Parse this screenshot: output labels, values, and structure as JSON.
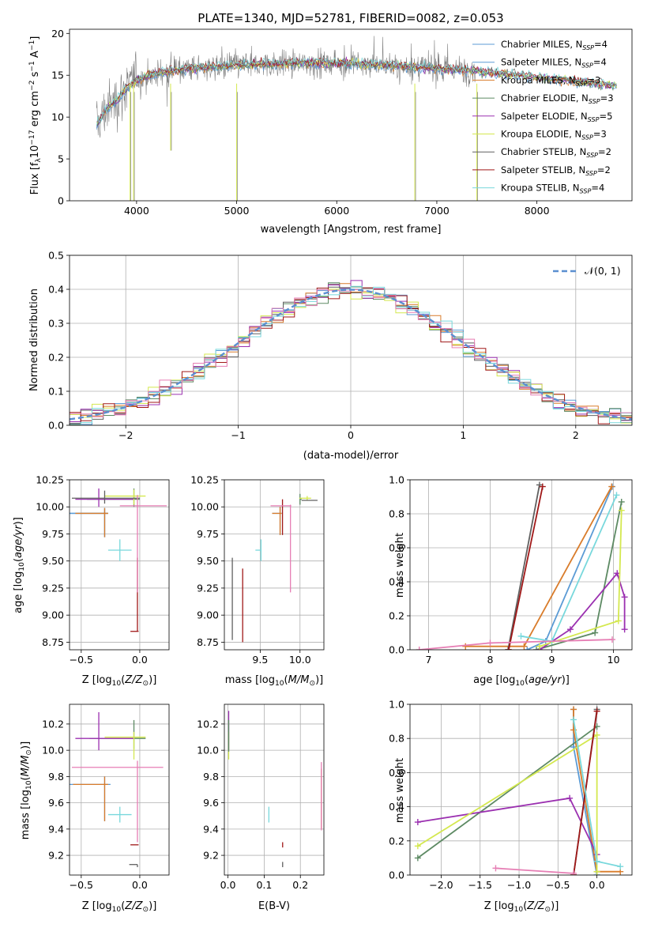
{
  "colors": {
    "Chabrier MILES": "#5b9bd5",
    "Salpeter MILES": "#5b9bd5",
    "Kroupa MILES": "#d97c2b",
    "Chabrier ELODIE": "#5d8a63",
    "Salpeter ELODIE": "#9b30b0",
    "Kroupa ELODIE": "#d4e84f",
    "Chabrier STELIB": "#606060",
    "Salpeter STELIB": "#a01818",
    "Kroupa STELIB": "#78d8dc",
    "normal": "#5b8fd0",
    "pink": "#e67eb4",
    "data_gray": "#808080"
  },
  "chart_data": [
    {
      "id": "spectrum",
      "type": "line",
      "title": "PLATE=1340, MJD=52781, FIBERID=0082, z=0.053",
      "xlabel": "wavelength [Angstrom, rest frame]",
      "ylabel": "Flux [f_λ10^-17 erg cm^-2 s^-1 A^-1]",
      "xlim": [
        3330,
        8950
      ],
      "ylim": [
        0,
        20.5
      ],
      "xticks": [
        4000,
        5000,
        6000,
        7000,
        8000
      ],
      "yticks": [
        0,
        5,
        10,
        15,
        20
      ],
      "grid": false,
      "legend_position": "right",
      "legend": [
        {
          "name": "Chabrier MILES",
          "nssp": "4"
        },
        {
          "name": "Salpeter MILES",
          "nssp": "4"
        },
        {
          "name": "Kroupa MILES",
          "nssp": "3"
        },
        {
          "name": "Chabrier ELODIE",
          "nssp": "3"
        },
        {
          "name": "Salpeter ELODIE",
          "nssp": "5"
        },
        {
          "name": "Kroupa ELODIE",
          "nssp": "3"
        },
        {
          "name": "Chabrier STELIB",
          "nssp": "2"
        },
        {
          "name": "Salpeter STELIB",
          "nssp": "2"
        },
        {
          "name": "Kroupa STELIB",
          "nssp": "4"
        }
      ],
      "continuum_knots": {
        "x": [
          3600,
          3700,
          3800,
          3900,
          4000,
          4200,
          4500,
          5000,
          5500,
          6000,
          6500,
          7000,
          7400
        ],
        "y": [
          9,
          11,
          12,
          13.5,
          14.5,
          15.2,
          15.8,
          16.2,
          16.4,
          16.5,
          16.2,
          15.8,
          15.6
        ]
      },
      "model_knots": {
        "x": [
          7400,
          7800,
          8200,
          8800
        ],
        "y": [
          15.5,
          15.0,
          14.5,
          13.8
        ]
      },
      "spikes": [
        {
          "x": 3935,
          "y": 0
        },
        {
          "x": 3970,
          "y": 0
        },
        {
          "x": 4340,
          "y": 6
        },
        {
          "x": 5000,
          "y": 0
        },
        {
          "x": 6780,
          "y": 0
        },
        {
          "x": 7400,
          "y": 0
        }
      ]
    },
    {
      "id": "residuals",
      "type": "line",
      "xlabel": "(data-model)/error",
      "ylabel": "Normed distribution",
      "xlim": [
        -2.5,
        2.5
      ],
      "ylim": [
        0,
        0.5
      ],
      "xticks": [
        -2,
        -1,
        0,
        1,
        2
      ],
      "yticks": [
        0.0,
        0.1,
        0.2,
        0.3,
        0.4,
        0.5
      ],
      "grid": true,
      "legend_position": "top-right",
      "legend_label": "𝒩(0, 1)",
      "bin_width": 0.1
    },
    {
      "id": "age_vs_Z",
      "type": "scatter",
      "xlabel": "Z [log10(Z/Z⊙)]",
      "ylabel": "age  [log10(age/yr)]",
      "xlim": [
        -0.6,
        0.25
      ],
      "ylim": [
        8.68,
        10.25
      ],
      "xticks": [
        -0.5,
        0.0
      ],
      "yticks": [
        8.75,
        9.0,
        9.25,
        9.5,
        9.75,
        10.0,
        10.25
      ],
      "grid": true,
      "points": [
        {
          "model": "Chabrier MILES",
          "x": -0.3,
          "xerr": [
            0.3,
            0.03
          ],
          "y": 9.94,
          "yerr": [
            0.22,
            0.05
          ]
        },
        {
          "model": "Salpeter MILES",
          "x": -0.3,
          "xerr": [
            0.3,
            0.03
          ],
          "y": 9.94,
          "yerr": [
            0.22,
            0.05
          ]
        },
        {
          "model": "Kroupa MILES",
          "x": -0.3,
          "xerr": [
            0.25,
            0.03
          ],
          "y": 9.94,
          "yerr": [
            0.22,
            0.05
          ]
        },
        {
          "model": "Chabrier ELODIE",
          "x": -0.05,
          "xerr": [
            0.4,
            0.05
          ],
          "y": 10.07,
          "yerr": [
            0.07,
            0.1
          ]
        },
        {
          "model": "Salpeter ELODIE",
          "x": -0.35,
          "xerr": [
            0.2,
            0.3
          ],
          "y": 10.07,
          "yerr": [
            0.07,
            0.1
          ]
        },
        {
          "model": "Kroupa ELODIE",
          "x": -0.05,
          "xerr": [
            0.25,
            0.1
          ],
          "y": 10.1,
          "yerr": [
            0.08,
            0.06
          ]
        },
        {
          "model": "Chabrier STELIB",
          "x": -0.3,
          "xerr": [
            0.28,
            0.3
          ],
          "y": 10.08,
          "yerr": [
            0.05,
            0.07
          ]
        },
        {
          "model": "Salpeter STELIB",
          "x": -0.02,
          "xerr": [
            0.06,
            0.01
          ],
          "y": 8.85,
          "yerr": [
            0.0,
            0.68
          ]
        },
        {
          "model": "Kroupa STELIB",
          "x": -0.17,
          "xerr": [
            0.1,
            0.1
          ],
          "y": 9.6,
          "yerr": [
            0.1,
            0.1
          ]
        },
        {
          "model": "pink",
          "x": -0.02,
          "xerr": [
            0.15,
            0.25
          ],
          "y": 10.01,
          "yerr": [
            0.8,
            0.1
          ]
        }
      ]
    },
    {
      "id": "age_vs_mass",
      "type": "scatter",
      "xlabel": "mass [log10(M/M⊙)]",
      "ylabel": "",
      "xlim": [
        9.05,
        10.3
      ],
      "ylim": [
        8.68,
        10.25
      ],
      "xticks": [
        9.5,
        10.0
      ],
      "yticks": [
        8.75,
        9.0,
        9.25,
        9.5,
        9.75,
        10.0,
        10.25
      ],
      "grid": true,
      "points": [
        {
          "model": "Chabrier MILES",
          "x": 9.75,
          "xerr": [
            0.1,
            0.02
          ],
          "y": 9.94,
          "yerr": [
            0.2,
            0.06
          ]
        },
        {
          "model": "Kroupa MILES",
          "x": 9.75,
          "xerr": [
            0.1,
            0.02
          ],
          "y": 9.94,
          "yerr": [
            0.2,
            0.06
          ]
        },
        {
          "model": "Chabrier ELODIE",
          "x": 10.0,
          "xerr": [
            0.0,
            0.02
          ],
          "y": 10.07,
          "yerr": [
            0.05,
            0.05
          ]
        },
        {
          "model": "Salpeter ELODIE",
          "x": 10.09,
          "xerr": [
            0.0,
            0.0
          ],
          "y": 10.07,
          "yerr": [
            0.0,
            0.0
          ]
        },
        {
          "model": "Kroupa ELODIE",
          "x": 10.09,
          "xerr": [
            0.1,
            0.05
          ],
          "y": 10.08,
          "yerr": [
            0.02,
            0.02
          ]
        },
        {
          "model": "Chabrier STELIB",
          "x": 9.15,
          "xerr": [
            0.0,
            0.0
          ],
          "y": 8.85,
          "yerr": [
            0.08,
            0.68
          ]
        },
        {
          "model": "Chabrier STELIB",
          "x": 10.12,
          "xerr": [
            0.1,
            0.1
          ],
          "y": 10.06,
          "yerr": [
            0.0,
            0.0
          ]
        },
        {
          "model": "Salpeter STELIB",
          "x": 9.28,
          "xerr": [
            0.0,
            0.0
          ],
          "y": 8.8,
          "yerr": [
            0.05,
            0.63
          ]
        },
        {
          "model": "Salpeter STELIB",
          "x": 9.78,
          "xerr": [
            0.0,
            0.0
          ],
          "y": 9.94,
          "yerr": [
            0.2,
            0.13
          ]
        },
        {
          "model": "Kroupa STELIB",
          "x": 9.51,
          "xerr": [
            0.07,
            0.0
          ],
          "y": 9.6,
          "yerr": [
            0.1,
            0.1
          ]
        },
        {
          "model": "pink",
          "x": 9.88,
          "xerr": [
            0.25,
            0.01
          ],
          "y": 10.01,
          "yerr": [
            0.8,
            0.01
          ]
        }
      ]
    },
    {
      "id": "weight_vs_age",
      "type": "line",
      "xlabel": "age  [log10(age/yr)]",
      "ylabel": "mass weight",
      "xlim": [
        6.7,
        10.3
      ],
      "ylim": [
        0,
        1.0
      ],
      "xticks": [
        7,
        8,
        9,
        10
      ],
      "yticks": [
        0.0,
        0.2,
        0.4,
        0.6,
        0.8,
        1.0
      ],
      "grid": true,
      "series": [
        {
          "model": "Chabrier MILES",
          "x": [
            8.6,
            8.9,
            9.98
          ],
          "y": [
            0.0,
            0.05,
            0.96
          ]
        },
        {
          "model": "Kroupa MILES",
          "x": [
            7.6,
            8.55,
            9.97
          ],
          "y": [
            0.02,
            0.02,
            0.96
          ]
        },
        {
          "model": "Chabrier ELODIE",
          "x": [
            8.75,
            9.7,
            10.13
          ],
          "y": [
            0.0,
            0.1,
            0.87
          ]
        },
        {
          "model": "Salpeter ELODIE",
          "x": [
            8.8,
            9.3,
            10.06,
            10.18,
            10.18
          ],
          "y": [
            0.0,
            0.12,
            0.45,
            0.31,
            0.12
          ]
        },
        {
          "model": "Kroupa ELODIE",
          "x": [
            8.8,
            10.08,
            10.13
          ],
          "y": [
            0.02,
            0.17,
            0.82
          ]
        },
        {
          "model": "Chabrier STELIB",
          "x": [
            8.29,
            8.8
          ],
          "y": [
            0.0,
            0.97
          ]
        },
        {
          "model": "Salpeter STELIB",
          "x": [
            8.3,
            8.85
          ],
          "y": [
            0.0,
            0.96
          ]
        },
        {
          "model": "Kroupa STELIB",
          "x": [
            8.5,
            9.0,
            10.05
          ],
          "y": [
            0.08,
            0.05,
            0.91
          ]
        },
        {
          "model": "pink",
          "x": [
            6.85,
            8.0,
            9.98
          ],
          "y": [
            0.0,
            0.04,
            0.06
          ]
        }
      ]
    },
    {
      "id": "mass_vs_Z",
      "type": "scatter",
      "xlabel": "Z [log10(Z/Z⊙)]",
      "ylabel": "mass [log10(M/M⊙)]",
      "xlim": [
        -0.6,
        0.25
      ],
      "ylim": [
        9.05,
        10.35
      ],
      "xticks": [
        -0.5,
        0.0
      ],
      "yticks": [
        9.2,
        9.4,
        9.6,
        9.8,
        10.0,
        10.2
      ],
      "grid": true,
      "points": [
        {
          "model": "Chabrier MILES",
          "x": -0.3,
          "xerr": [
            0.3,
            0.05
          ],
          "y": 9.74,
          "yerr": [
            0.28,
            0.06
          ]
        },
        {
          "model": "Kroupa MILES",
          "x": -0.3,
          "xerr": [
            0.27,
            0.03
          ],
          "y": 9.74,
          "yerr": [
            0.28,
            0.06
          ]
        },
        {
          "model": "Chabrier ELODIE",
          "x": -0.05,
          "xerr": [
            0.38,
            0.1
          ],
          "y": 10.09,
          "yerr": [
            0.08,
            0.14
          ]
        },
        {
          "model": "Salpeter ELODIE",
          "x": -0.35,
          "xerr": [
            0.2,
            0.3
          ],
          "y": 10.09,
          "yerr": [
            0.09,
            0.2
          ]
        },
        {
          "model": "Kroupa ELODIE",
          "x": -0.05,
          "xerr": [
            0.25,
            0.1
          ],
          "y": 10.1,
          "yerr": [
            0.17,
            0.04
          ]
        },
        {
          "model": "Chabrier STELIB",
          "x": -0.02,
          "xerr": [
            0.07,
            0.0
          ],
          "y": 9.13,
          "yerr": [
            0.02,
            0.0
          ]
        },
        {
          "model": "Salpeter STELIB",
          "x": -0.02,
          "xerr": [
            0.06,
            0.01
          ],
          "y": 9.28,
          "yerr": [
            0.0,
            0.0
          ]
        },
        {
          "model": "Kroupa STELIB",
          "x": -0.17,
          "xerr": [
            0.1,
            0.1
          ],
          "y": 9.51,
          "yerr": [
            0.06,
            0.06
          ]
        },
        {
          "model": "pink",
          "x": -0.02,
          "xerr": [
            0.56,
            0.22
          ],
          "y": 9.87,
          "yerr": [
            0.57,
            0.05
          ]
        }
      ]
    },
    {
      "id": "mass_vs_ebv",
      "type": "scatter",
      "xlabel": "E(B-V)",
      "ylabel": "",
      "xlim": [
        -0.01,
        0.265
      ],
      "ylim": [
        9.05,
        10.35
      ],
      "xticks": [
        0.0,
        0.1,
        0.2
      ],
      "yticks": [
        9.2,
        9.4,
        9.6,
        9.8,
        10.0,
        10.2
      ],
      "grid": true,
      "points": [
        {
          "model": "Salpeter ELODIE",
          "x": 0.002,
          "yerr": [
            0.1,
            0.2
          ],
          "y": 10.1
        },
        {
          "model": "Kroupa ELODIE",
          "x": 0.002,
          "yerr": [
            0.17,
            0.04
          ],
          "y": 10.1
        },
        {
          "model": "Chabrier ELODIE",
          "x": 0.002,
          "yerr": [
            0.1,
            0.14
          ],
          "y": 10.09
        },
        {
          "model": "Kroupa STELIB",
          "x": 0.113,
          "yerr": [
            0.06,
            0.06
          ],
          "y": 9.51
        },
        {
          "model": "Salpeter STELIB",
          "x": 0.151,
          "yerr": [
            0.02,
            0.02
          ],
          "y": 9.28
        },
        {
          "model": "Chabrier STELIB",
          "x": 0.151,
          "yerr": [
            0.02,
            0.02
          ],
          "y": 9.13
        },
        {
          "model": "Kroupa MILES",
          "x": 0.258,
          "yerr": [
            0.34,
            0.12
          ],
          "y": 9.74
        },
        {
          "model": "pink",
          "x": 0.258,
          "yerr": [
            0.47,
            0.05
          ],
          "y": 9.86
        }
      ]
    },
    {
      "id": "weight_vs_Z",
      "type": "line",
      "xlabel": "Z [log10(Z/Z⊙)]",
      "ylabel": "mass weight",
      "xlim": [
        -2.4,
        0.45
      ],
      "ylim": [
        0,
        1.0
      ],
      "xticks": [
        -2.0,
        -1.5,
        -1.0,
        -0.5,
        0.0
      ],
      "yticks": [
        0.0,
        0.2,
        0.4,
        0.6,
        0.8,
        1.0
      ],
      "grid": true,
      "series": [
        {
          "model": "Chabrier MILES",
          "x": [
            -0.3,
            -0.3,
            0.0
          ],
          "y": [
            0.97,
            0.75,
            0.0
          ]
        },
        {
          "model": "Kroupa MILES",
          "x": [
            -0.3,
            -0.3,
            0.0,
            0.3
          ],
          "y": [
            0.97,
            0.85,
            0.02,
            0.02
          ]
        },
        {
          "model": "Chabrier ELODIE",
          "x": [
            -2.3,
            0.0
          ],
          "y": [
            0.1,
            0.87
          ]
        },
        {
          "model": "Salpeter ELODIE",
          "x": [
            -2.3,
            -0.35,
            0.0
          ],
          "y": [
            0.31,
            0.45,
            0.12
          ]
        },
        {
          "model": "Kroupa ELODIE",
          "x": [
            -2.3,
            0.0,
            0.0
          ],
          "y": [
            0.17,
            0.82,
            0.02
          ]
        },
        {
          "model": "Chabrier STELIB",
          "x": [
            -0.3,
            0.0
          ],
          "y": [
            0.0,
            0.97
          ]
        },
        {
          "model": "Salpeter STELIB",
          "x": [
            -0.3,
            0.0
          ],
          "y": [
            0.0,
            0.96
          ]
        },
        {
          "model": "Kroupa STELIB",
          "x": [
            -0.3,
            0.0,
            0.3
          ],
          "y": [
            0.91,
            0.08,
            0.05
          ]
        },
        {
          "model": "pink",
          "x": [
            -1.3,
            -0.3
          ],
          "y": [
            0.04,
            0.01
          ]
        }
      ]
    }
  ]
}
